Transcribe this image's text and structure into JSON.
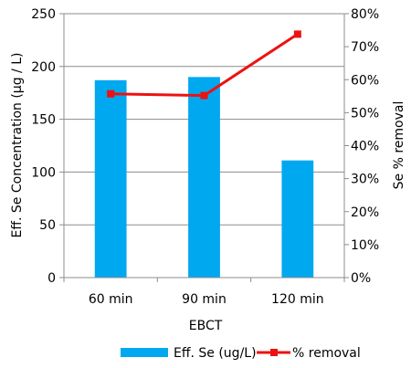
{
  "chart_data": {
    "type": "bar",
    "categories": [
      "60 min",
      "90 min",
      "120 min"
    ],
    "xlabel": "EBCT",
    "ylabel": "Eff. Se Concentration (μg / L)",
    "y2label": "Se % removal",
    "ylim": [
      0,
      250
    ],
    "y_ticks": [
      "0",
      "50",
      "100",
      "150",
      "200",
      "250"
    ],
    "y2lim": [
      0,
      80
    ],
    "y2_ticks": [
      "0%",
      "10%",
      "20%",
      "30%",
      "40%",
      "50%",
      "60%",
      "70%",
      "80%"
    ],
    "grid": "horizontal",
    "legend_position": "bottom",
    "series": [
      {
        "name": "Eff. Se (ug/L)",
        "type": "bar",
        "axis": "left",
        "values": [
          187,
          190,
          111
        ],
        "color": "#00a8f0"
      },
      {
        "name": "% removal",
        "type": "line",
        "axis": "right",
        "marker": "square",
        "values": [
          55.7,
          55.2,
          73.8
        ],
        "color": "#ee1111"
      }
    ]
  }
}
